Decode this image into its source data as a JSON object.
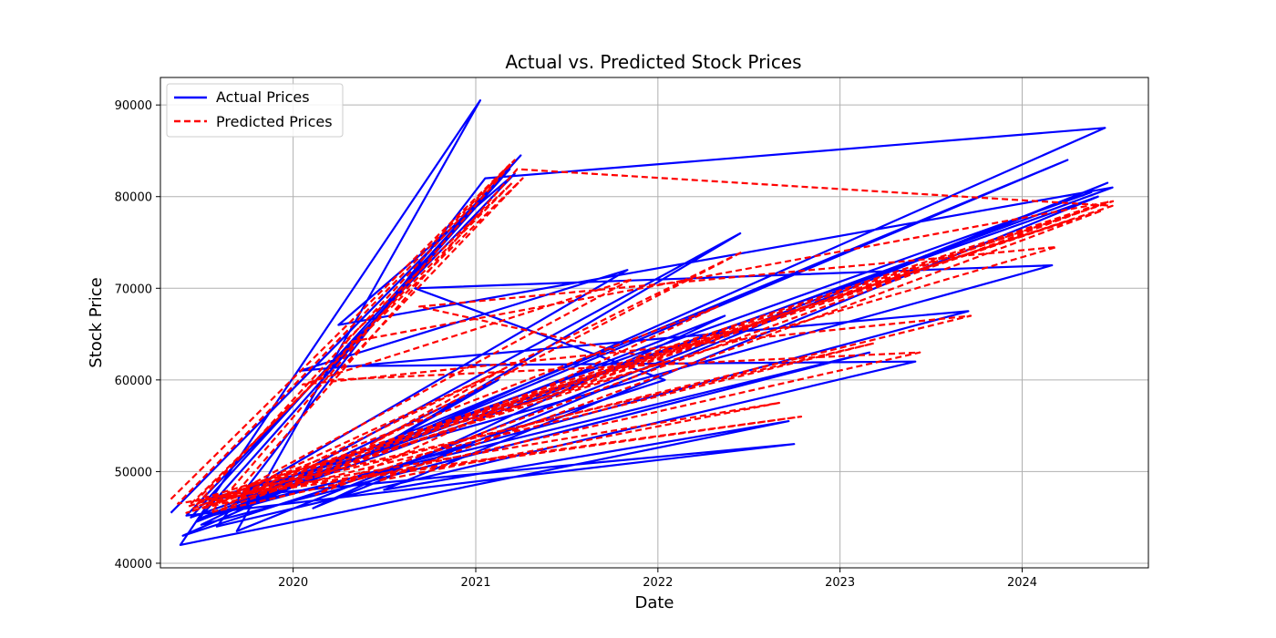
{
  "chart_data": {
    "type": "line",
    "title": "Actual vs. Predicted Stock Prices",
    "xlabel": "Date",
    "ylabel": "Stock Price",
    "xlim": [
      "2019-04-10",
      "2024-09-10"
    ],
    "ylim": [
      39500,
      93000
    ],
    "x_ticks": [
      "2020",
      "2021",
      "2022",
      "2023",
      "2024"
    ],
    "y_ticks": [
      40000,
      50000,
      60000,
      70000,
      80000,
      90000
    ],
    "grid": true,
    "legend_position": "top-left",
    "colors": {
      "actual": "#0000ff",
      "predicted": "#ff0000",
      "grid": "#b0b0b0"
    },
    "series": [
      {
        "name": "Actual Prices",
        "style": "solid",
        "x": [
          "2019-05-01",
          "2021-03-10",
          "2019-06-20",
          "2022-05-15",
          "2020-02-10",
          "2024-06-20",
          "2019-09-10",
          "2021-01-10",
          "2019-05-20",
          "2022-09-20",
          "2020-07-01",
          "2024-06-01",
          "2019-06-10",
          "2021-04-01",
          "2020-03-20",
          "2023-06-01",
          "2019-08-01",
          "2021-01-20",
          "2024-06-15",
          "2019-05-25",
          "2022-01-15",
          "2020-09-01",
          "2024-03-01",
          "2019-07-15",
          "2022-10-01",
          "2019-06-01",
          "2021-03-20",
          "2020-04-01",
          "2024-06-30",
          "2019-10-01",
          "2023-03-01",
          "2019-07-01",
          "2021-02-15",
          "2020-06-01",
          "2022-06-15",
          "2019-08-20",
          "2024-04-01",
          "2019-06-25",
          "2023-09-15",
          "2020-01-15",
          "2021-11-01",
          "2019-09-20",
          "2024-05-20"
        ],
        "y": [
          45500,
          83000,
          44500,
          67000,
          46000,
          81500,
          43500,
          90500,
          42000,
          55500,
          48000,
          80000,
          45000,
          84500,
          61500,
          62000,
          44000,
          82000,
          87500,
          43000,
          60000,
          70000,
          72500,
          47000,
          53000,
          45200,
          82500,
          66000,
          81000,
          46500,
          63000,
          44200,
          60000,
          52000,
          76000,
          45500,
          84000,
          44800,
          67500,
          61000,
          72000,
          47500,
          80500
        ]
      },
      {
        "name": "Predicted Prices",
        "style": "dashed",
        "x": [
          "2019-05-01",
          "2021-03-10",
          "2019-06-15",
          "2022-05-01",
          "2020-02-15",
          "2024-06-25",
          "2019-07-20",
          "2021-03-20",
          "2019-05-15",
          "2022-09-01",
          "2020-06-20",
          "2024-06-10",
          "2019-06-05",
          "2021-04-05",
          "2020-03-15",
          "2023-06-10",
          "2019-08-10",
          "2021-03-25",
          "2024-06-30",
          "2019-06-01",
          "2022-01-20",
          "2020-09-10",
          "2024-03-10",
          "2019-07-10",
          "2022-10-15",
          "2019-06-20",
          "2021-03-15",
          "2020-04-10",
          "2024-07-01",
          "2019-09-20",
          "2023-03-10",
          "2019-07-05",
          "2021-02-20",
          "2020-06-05",
          "2022-06-20",
          "2019-08-25",
          "2024-04-10",
          "2019-06-28",
          "2023-09-20",
          "2020-01-20",
          "2021-11-10",
          "2019-09-25",
          "2024-05-25"
        ],
        "y": [
          47000,
          83500,
          46000,
          68000,
          47500,
          79500,
          45500,
          84000,
          46500,
          57500,
          49000,
          78500,
          46200,
          82000,
          60000,
          63000,
          45800,
          83000,
          79000,
          45500,
          62000,
          68000,
          74500,
          47200,
          56000,
          46800,
          81500,
          64000,
          79500,
          47800,
          64000,
          46000,
          61000,
          53000,
          74000,
          46500,
          77500,
          46300,
          67000,
          59500,
          71000,
          48200,
          79000
        ]
      }
    ]
  }
}
